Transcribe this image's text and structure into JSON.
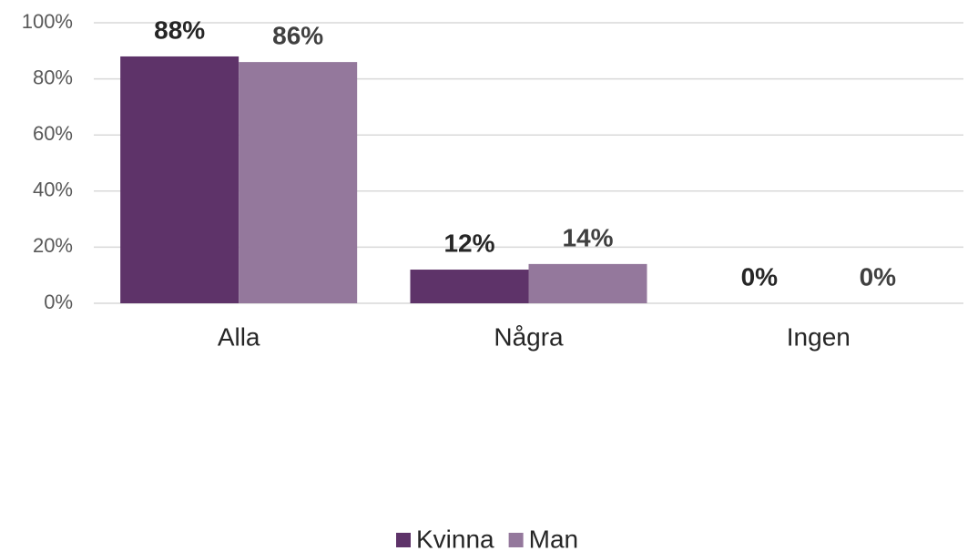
{
  "chart_data": {
    "type": "bar",
    "categories": [
      "Alla",
      "Några",
      "Ingen"
    ],
    "series": [
      {
        "name": "Kvinna",
        "color": "#5e3369",
        "values": [
          88,
          12,
          0
        ],
        "value_labels": [
          "88%",
          "12%",
          "0%"
        ]
      },
      {
        "name": "Man",
        "color": "#94789c",
        "values": [
          86,
          14,
          0
        ],
        "value_labels": [
          "86%",
          "14%",
          "0%"
        ]
      }
    ],
    "ylim": [
      0,
      100
    ],
    "yticks": [
      {
        "value": 0,
        "label": "0%"
      },
      {
        "value": 20,
        "label": "20%"
      },
      {
        "value": 40,
        "label": "40%"
      },
      {
        "value": 60,
        "label": "60%"
      },
      {
        "value": 80,
        "label": "80%"
      },
      {
        "value": 100,
        "label": "100%"
      }
    ],
    "grid": true,
    "legend": "bottom"
  }
}
